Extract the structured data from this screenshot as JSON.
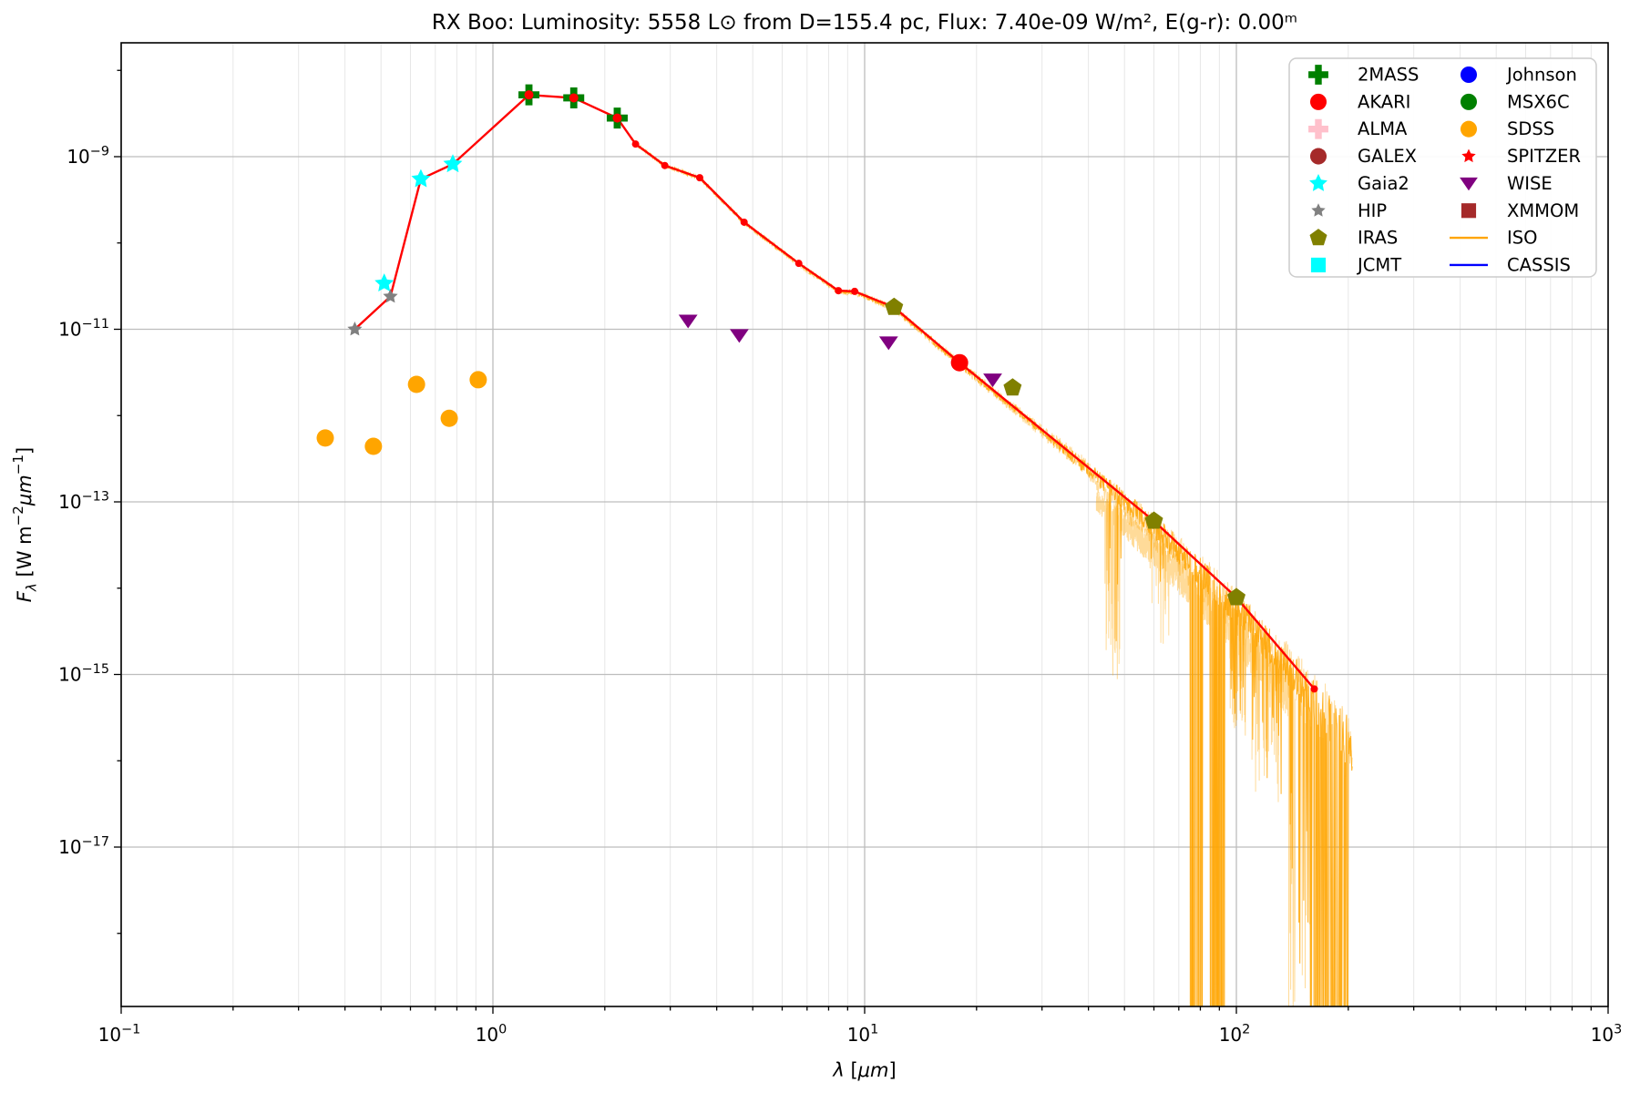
{
  "figure": {
    "title": "RX Boo:  Luminosity: 5558 L⊙ from D=155.4 pc, Flux: 7.40e-09 W/m², E(g-r): 0.00ᵐ",
    "background": "#ffffff"
  },
  "chart_data": {
    "type": "scatter",
    "title": "RX Boo:  Luminosity: 5558 L⊙ from D=155.4 pc, Flux: 7.40e-09 W/m², E(g-r): 0.00ᵐ",
    "xlabel": "λ [μm]",
    "ylabel": "Fλ [W m−2μm−1]",
    "xlabel_parts": [
      {
        "t": "λ",
        "it": true
      },
      {
        "t": " [",
        "it": false
      },
      {
        "t": "μm",
        "it": true
      },
      {
        "t": "]",
        "it": false
      }
    ],
    "ylabel_parts": [
      {
        "t": "F",
        "it": true
      },
      {
        "t": "λ",
        "it": true,
        "sub": true
      },
      {
        "t": " [W m",
        "it": false
      },
      {
        "t": "−2",
        "sup": true
      },
      {
        "t": "μm",
        "it": true
      },
      {
        "t": "−1",
        "sup": true
      },
      {
        "t": "]",
        "it": false
      }
    ],
    "x_axis": {
      "scale": "log",
      "min": 0.1,
      "max": 1000,
      "tick_exponents": [
        -1,
        0,
        1,
        2,
        3
      ]
    },
    "y_axis": {
      "scale": "log",
      "min": 1.4e-19,
      "max": 2.1e-08,
      "tick_exponents": [
        -9,
        -11,
        -13,
        -15,
        -17
      ]
    },
    "grid": {
      "major_color": "#bdbdbd",
      "minor_color": "#e7e7e7"
    },
    "model_line": {
      "color": "#ff0000",
      "points": [
        [
          0.425,
          1e-11
        ],
        [
          0.53,
          2.4e-11
        ],
        [
          0.64,
          5.5e-10
        ],
        [
          0.78,
          8.2e-10
        ],
        [
          1.25,
          5.2e-09
        ],
        [
          1.65,
          4.8e-09
        ],
        [
          2.16,
          2.8e-09
        ],
        [
          2.42,
          1.4e-09
        ],
        [
          2.9,
          7.9e-10
        ],
        [
          3.6,
          5.7e-10
        ],
        [
          4.74,
          1.74e-10
        ],
        [
          6.65,
          5.8e-11
        ],
        [
          8.5,
          2.8e-11
        ],
        [
          9.4,
          2.75e-11
        ],
        [
          12,
          1.8e-11
        ],
        [
          18,
          4.1e-12
        ],
        [
          60,
          6e-14
        ],
        [
          100,
          7.8e-15
        ],
        [
          162,
          6.8e-16
        ]
      ]
    },
    "series": [
      {
        "name": "2MASS",
        "marker": "plus",
        "color": "#008000",
        "points": [
          [
            1.25,
            5.2e-09
          ],
          [
            1.65,
            4.8e-09
          ],
          [
            2.16,
            2.8e-09
          ]
        ]
      },
      {
        "name": "AKARI",
        "marker": "circle",
        "color": "#ff0000",
        "points": [
          [
            18,
            4.1e-12
          ]
        ]
      },
      {
        "name": "ALMA",
        "marker": "plus",
        "color": "#ffc0cb",
        "points": []
      },
      {
        "name": "GALEX",
        "marker": "circle",
        "color": "#a52a2a",
        "points": []
      },
      {
        "name": "Gaia2",
        "marker": "star",
        "color": "#00ffff",
        "points": [
          [
            0.51,
            3.4e-11
          ],
          [
            0.64,
            5.5e-10
          ],
          [
            0.78,
            8.2e-10
          ]
        ]
      },
      {
        "name": "HIP",
        "marker": "star-small",
        "color": "#808080",
        "points": [
          [
            0.425,
            1e-11
          ],
          [
            0.53,
            2.4e-11
          ]
        ]
      },
      {
        "name": "IRAS",
        "marker": "pentagon",
        "color": "#808000",
        "points": [
          [
            12,
            1.8e-11
          ],
          [
            25,
            2.1e-12
          ],
          [
            60,
            6e-14
          ],
          [
            100,
            7.8e-15
          ]
        ]
      },
      {
        "name": "JCMT",
        "marker": "square",
        "color": "#00ffff",
        "points": []
      },
      {
        "name": "Johnson",
        "marker": "circle",
        "color": "#0000ff",
        "points": []
      },
      {
        "name": "MSX6C",
        "marker": "circle",
        "color": "#008000",
        "points": []
      },
      {
        "name": "SDSS",
        "marker": "circle",
        "color": "#ffa500",
        "points": [
          [
            0.354,
            5.5e-13
          ],
          [
            0.477,
            4.4e-13
          ],
          [
            0.623,
            2.3e-12
          ],
          [
            0.763,
            9.3e-13
          ],
          [
            0.913,
            2.6e-12
          ]
        ]
      },
      {
        "name": "SPITZER",
        "marker": "star-small",
        "color": "#ff0000",
        "points": []
      },
      {
        "name": "WISE",
        "marker": "triangle-down",
        "color": "#800080",
        "points": [
          [
            3.35,
            1.25e-11
          ],
          [
            4.6,
            8.5e-12
          ],
          [
            11.6,
            7e-12
          ],
          [
            22.1,
            2.6e-12
          ]
        ]
      },
      {
        "name": "XMMOM",
        "marker": "square",
        "color": "#a52a2a",
        "points": []
      }
    ],
    "iso_spectrum": {
      "name": "ISO",
      "color": "#ffa500",
      "lambda_start": 2.35,
      "lambda_end": 205,
      "samples": 1500,
      "noise_profile": [
        [
          2.35,
          0.018
        ],
        [
          10,
          0.025
        ],
        [
          30,
          0.05
        ],
        [
          45,
          0.1
        ],
        [
          70,
          0.16
        ],
        [
          100,
          0.2
        ],
        [
          140,
          0.22
        ],
        [
          205,
          0.3
        ]
      ],
      "offset_profile": [
        [
          2.35,
          0.0
        ],
        [
          40,
          -0.02
        ],
        [
          70,
          -0.08
        ],
        [
          100,
          -0.12
        ],
        [
          140,
          -0.1
        ],
        [
          205,
          -0.15
        ]
      ],
      "spike_bands": [
        {
          "from": 44,
          "to": 49,
          "prob": 0.18,
          "depth": 1.8
        },
        {
          "from": 58,
          "to": 66,
          "prob": 0.08,
          "depth": 0.8
        },
        {
          "from": 75,
          "to": 81,
          "prob": 0.5,
          "depth": 12
        },
        {
          "from": 85,
          "to": 93,
          "prob": 0.55,
          "depth": 12
        },
        {
          "from": 96,
          "to": 106,
          "prob": 0.15,
          "depth": 1.2
        },
        {
          "from": 110,
          "to": 132,
          "prob": 0.12,
          "depth": 1.5
        },
        {
          "from": 138,
          "to": 158,
          "prob": 0.25,
          "depth": 4
        },
        {
          "from": 158,
          "to": 200,
          "prob": 0.5,
          "depth": 12
        }
      ],
      "passes": [
        {
          "seed": 11,
          "opacity": 0.4,
          "amp": 1.5,
          "extra_offset": -0.05,
          "from": 2.35,
          "to": 205
        },
        {
          "seed": 23,
          "opacity": 0.85,
          "amp": 1.0,
          "extra_offset": 0,
          "from": 2.35,
          "to": 205
        },
        {
          "seed": 77,
          "opacity": 0.4,
          "amp": 1.4,
          "extra_offset": -0.28,
          "from": 42,
          "to": 140
        }
      ]
    },
    "cassis": {
      "name": "CASSIS",
      "color": "#0000ff"
    },
    "legend": {
      "entries": [
        {
          "label": "2MASS",
          "type": "marker",
          "marker": "plus",
          "color": "#008000"
        },
        {
          "label": "AKARI",
          "type": "marker",
          "marker": "circle",
          "color": "#ff0000"
        },
        {
          "label": "ALMA",
          "type": "marker",
          "marker": "plus",
          "color": "#ffc0cb"
        },
        {
          "label": "GALEX",
          "type": "marker",
          "marker": "circle",
          "color": "#a52a2a"
        },
        {
          "label": "Gaia2",
          "type": "marker",
          "marker": "star",
          "color": "#00ffff"
        },
        {
          "label": "HIP",
          "type": "marker",
          "marker": "star-small",
          "color": "#808080"
        },
        {
          "label": "IRAS",
          "type": "marker",
          "marker": "pentagon",
          "color": "#808000"
        },
        {
          "label": "JCMT",
          "type": "marker",
          "marker": "square",
          "color": "#00ffff"
        },
        {
          "label": "Johnson",
          "type": "marker",
          "marker": "circle",
          "color": "#0000ff"
        },
        {
          "label": "MSX6C",
          "type": "marker",
          "marker": "circle",
          "color": "#008000"
        },
        {
          "label": "SDSS",
          "type": "marker",
          "marker": "circle",
          "color": "#ffa500"
        },
        {
          "label": "SPITZER",
          "type": "marker",
          "marker": "star-small",
          "color": "#ff0000"
        },
        {
          "label": "WISE",
          "type": "marker",
          "marker": "triangle-down",
          "color": "#800080"
        },
        {
          "label": "XMMOM",
          "type": "marker",
          "marker": "square",
          "color": "#a52a2a"
        },
        {
          "label": "ISO",
          "type": "line",
          "color": "#ffa500"
        },
        {
          "label": "CASSIS",
          "type": "line",
          "color": "#0000ff"
        }
      ],
      "position": "upper right"
    }
  }
}
